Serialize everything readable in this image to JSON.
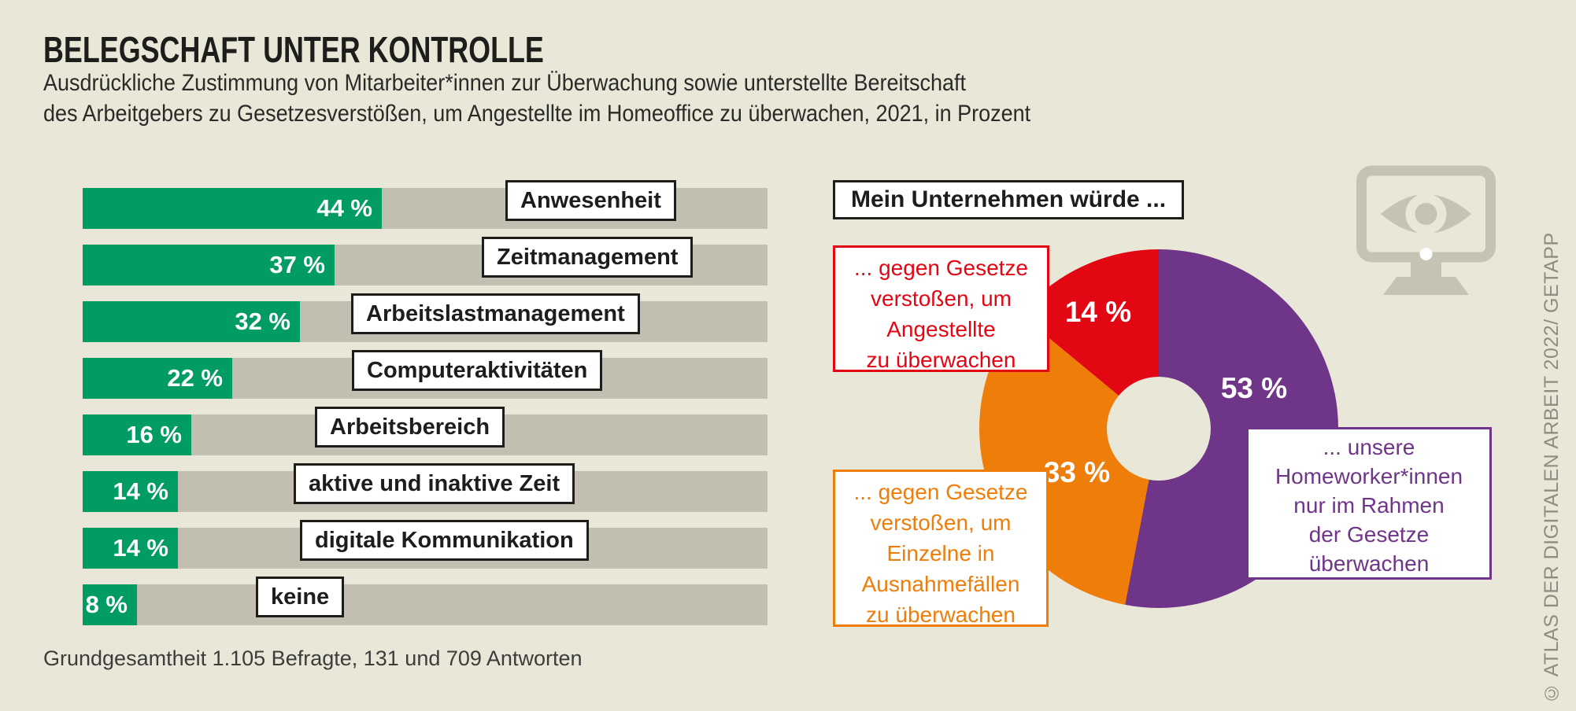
{
  "header": {
    "title": "BELEGSCHAFT UNTER KONTROLLE",
    "subtitle": [
      "Ausdrückliche Zustimmung von Mitarbeiter*innen zur Überwachung sowie unterstellte Bereitschaft",
      "des Arbeitgebers zu Gesetzesverstößen, um Angestellte im Homeoffice zu überwachen, 2021, in Prozent"
    ]
  },
  "footnote": "Grundgesamtheit 1.105 Befragte, 131 und 709 Antworten",
  "credit": "© ATLAS DER DIGITALEN ARBEIT 2022/ GETAPP",
  "colors": {
    "background": "#e9e7d8",
    "bar_track": "#c2bfb1",
    "bar_fill": "#009c63",
    "pie_red": "#e30613",
    "pie_orange": "#ef7d0a",
    "pie_purple": "#6f3588",
    "text": "#1d1d1b",
    "credit_gray": "#8f8d81",
    "monitor_icon_gray": "#c6c3b5"
  },
  "chart_data": [
    {
      "type": "bar",
      "orientation": "horizontal",
      "unit": "percent",
      "categories": [
        "Anwesenheit",
        "Zeitmanagement",
        "Arbeitslastmanagement",
        "Computeraktivitäten",
        "Arbeitsbereich",
        "aktive und inaktive Zeit",
        "digitale Kommunikation",
        "keine"
      ],
      "values": [
        44,
        37,
        32,
        22,
        16,
        14,
        14,
        8
      ],
      "value_labels": [
        "44 %",
        "37 %",
        "32 %",
        "22 %",
        "16 %",
        "14 %",
        "14 %",
        "8 %"
      ]
    },
    {
      "type": "pie",
      "donut": true,
      "start": "top",
      "direction": "clockwise",
      "title": "Mein Unternehmen würde ...",
      "slices": [
        {
          "value": 53,
          "value_label": "53 %",
          "color": "#6f3588",
          "label": "... unsere Homeworker*innen nur im Rahmen der Gesetze überwachen",
          "label_lines": [
            "... unsere",
            "Homeworker*innen",
            "nur im Rahmen",
            "der Gesetze",
            "überwachen"
          ]
        },
        {
          "value": 33,
          "value_label": "33 %",
          "color": "#ef7d0a",
          "label": "... gegen Gesetze verstoßen, um Einzelne in Ausnahmefällen zu überwachen",
          "label_lines": [
            "... gegen Gesetze",
            "verstoßen, um",
            "Einzelne in",
            "Ausnahmefällen",
            "zu überwachen"
          ]
        },
        {
          "value": 14,
          "value_label": "14 %",
          "color": "#e30613",
          "label": "... gegen Gesetze verstoßen, um Angestellte zu überwachen",
          "label_lines": [
            "... gegen Gesetze",
            "verstoßen, um",
            "Angestellte",
            "zu überwachen"
          ]
        }
      ]
    }
  ]
}
